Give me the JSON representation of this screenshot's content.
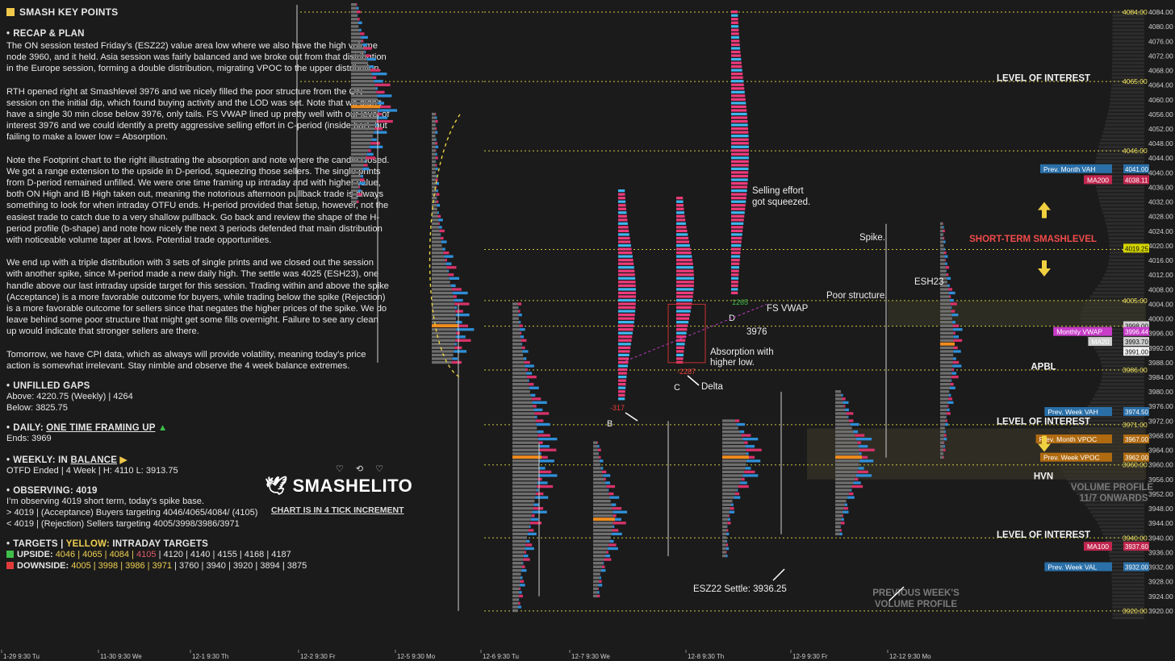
{
  "header": {
    "title": "SMASH KEY POINTS"
  },
  "recap": {
    "title": "RECAP & PLAN",
    "paragraphs": [
      "The ON session tested Friday’s (ESZ22) value area low where we also have the high volume node 3960, and it held. Asia session was fairly balanced and we broke out from that distribution in the Europe session, forming a double distribution, migrating VPOC to the upper distribution.",
      "RTH opened right at Smashlevel 3976 and we nicely filled the poor structure from the ON session on the initial dip, which found buying activity and the LOD was set. Note that we didn’t have a single 30 min close below 3976, only tails. FS VWAP lined up pretty well with our level of interest 3976 and we could identify a pretty aggressive selling effort in C-period (inside bar), but failing to make a lower low = Absorption.",
      "Note the Footprint chart to the right illustrating the absorption and note where the candle closed. We got a range extension to the upside in D-period, squeezing those sellers. The single prints from D-period remained unfilled. We were one time framing up intraday and with higher value, both ON High and IB High taken out, meaning the notorious afternoon pullback trade is always something to look for when intraday OTFU ends. H-period provided that setup, however, not the easiest trade to catch due to a very shallow pullback. Go back and review the shape of the H-period profile (b-shape) and note how nicely the next 3 periods defended that main distribution with noticeable volume taper at lows. Potential trade opportunities.",
      "We end up with a triple distribution with 3 sets of single prints and we closed out the session with another spike, since M-period made a new daily high. The settle was 4025 (ESH23), one handle above our last intraday upside target for this session. Trading within and above the spike (Acceptance) is a more favorable outcome for buyers, while trading below the spike (Rejection) is a more favorable outcome for sellers since that negates the higher prices of the spike. We do leave behind some poor structure that might get some fills overnight. Failure to see any clean up would indicate that stronger sellers are there.",
      "Tomorrow, we have CPI data, which as always will provide volatility, meaning today’s price action is somewhat irrelevant. Stay nimble and observe the 4 week balance extremes."
    ]
  },
  "gaps": {
    "title": "UNFILLED GAPS",
    "above": "Above: 4220.75 (Weekly) | 4264",
    "below": "Below: 3825.75"
  },
  "daily": {
    "title_prefix": "DAILY:",
    "title_main": "ONE TIME FRAMING UP",
    "arrow": "▲",
    "ends": "Ends: 3969"
  },
  "weekly": {
    "title_prefix": "WEEKLY:",
    "title_pre": "IN",
    "title_main": "BALANCE",
    "arrow": "▶",
    "detail": "OTFD Ended | 4 Week | H: 4110 L: 3913.75"
  },
  "observing": {
    "title": "OBSERVING: 4019",
    "lines": [
      "I’m observing 4019 short term, today’s spike base.",
      "> 4019 | (Acceptance) Buyers targeting 4046/4065/4084/ (4105)",
      "< 4019 | (Rejection) Sellers targeting 4005/3998/3986/3971"
    ]
  },
  "targets": {
    "title_a": "TARGETS",
    "title_sep": "|",
    "title_b": "YELLOW:",
    "title_c": "INTRADAY TARGETS",
    "upside_label": "UPSIDE:",
    "upside_yellow": "4046 | 4065 | 4084 |",
    "upside_red": "4105",
    "upside_rest": "| 4120 | 4140 | 4155 | 4168 | 4187",
    "downside_label": "DOWNSIDE:",
    "downside_yellow": "4005 | 3998 | 3986 | 3971",
    "downside_rest": "| 3760 | 3940 | 3920 | 3894 | 3875"
  },
  "brand": {
    "name": "SMASHELITO",
    "increment": "CHART IS IN 4 TICK INCREMENT",
    "socials": "♡ ⟲ ♡"
  },
  "colors": {
    "accent_yellow": "#f0c94a",
    "buy": "#3db7f0",
    "sell": "#ef3b7b",
    "level_line": "#c8c840",
    "bg": "#1b1b1b",
    "poc": "#f08c1e"
  },
  "chart_data": {
    "type": "market-profile",
    "ylim": [
      3916,
      4086
    ],
    "y_ticks": [
      4084,
      4080,
      4076,
      4072,
      4068,
      4064,
      4060,
      4056,
      4052,
      4048,
      4044,
      4040,
      4036,
      4032,
      4028,
      4024,
      4020,
      4016,
      4012,
      4008,
      4004,
      4000,
      3996,
      3992,
      3988,
      3984,
      3980,
      3976,
      3972,
      3968,
      3964,
      3960,
      3956,
      3952,
      3948,
      3944,
      3940,
      3936,
      3932,
      3928,
      3924,
      3920
    ],
    "y_tick_labels": [
      "4084.00",
      "4080.00",
      "4076.00",
      "4072.00",
      "4068.00",
      "4064.00",
      "4060.00",
      "4056.00",
      "4052.00",
      "4048.00",
      "4044.00",
      "4040.00",
      "4036.00",
      "4032.00",
      "4028.00",
      "4024.00",
      "4020.00",
      "4016.00",
      "4012.00",
      "4008.00",
      "4004.00",
      "4000.00",
      "3996.00",
      "3992.00",
      "3988.00",
      "3984.00",
      "3980.00",
      "3976.00",
      "3972.00",
      "3968.00",
      "3964.00",
      "3960.00",
      "3956.00",
      "3952.00",
      "3948.00",
      "3944.00",
      "3940.00",
      "3936.00",
      "3932.00",
      "3928.00",
      "3924.00",
      "3920.00"
    ],
    "x_ticks": [
      "1-29  9:30 Tu",
      "11-30  9:30 We",
      "12-1  9:30 Th",
      "12-2  9:30 Fr",
      "12-5  9:30 Mo",
      "12-6  9:30 Tu",
      "12-7  9:30 We",
      "12-8  9:30 Th",
      "12-9  9:30 Fr",
      "12-12  9:30 Mo"
    ],
    "levels": [
      {
        "price": 4084.0,
        "label": "4084.00"
      },
      {
        "price": 4065.0,
        "label": "4065.00"
      },
      {
        "price": 4046.0,
        "label": "4046.00"
      },
      {
        "price": 4019.0,
        "label": "4019.00"
      },
      {
        "price": 4005.0,
        "label": "4005.00"
      },
      {
        "price": 3998.0,
        "label": "3998.00"
      },
      {
        "price": 3986.0,
        "label": "3986.00"
      },
      {
        "price": 3971.0,
        "label": "3971.00"
      },
      {
        "price": 3960.0,
        "label": "3960.00"
      },
      {
        "price": 3940.0,
        "label": "3940.00"
      },
      {
        "price": 3920.0,
        "label": "3920.00"
      }
    ],
    "price_tags": [
      {
        "price": 4041.0,
        "text": "Prev. Month VAH",
        "value": "4041.00",
        "color": "#2a6fa8"
      },
      {
        "price": 4038.0,
        "text": "MA200",
        "value": "4038.11",
        "color": "#c0264e"
      },
      {
        "price": 4019.25,
        "text": "",
        "value": "4019.25",
        "color": "#d4d400"
      },
      {
        "price": 3998.0,
        "text": "",
        "value": "3998.00",
        "color": "#cfcfcf"
      },
      {
        "price": 3996.44,
        "text": "Monthly VWAP",
        "value": "3996.44",
        "color": "#c83cc8"
      },
      {
        "price": 3993.7,
        "text": "MA20",
        "value": "3993.70",
        "color": "#cfcfcf"
      },
      {
        "price": 3991.0,
        "text": "",
        "value": "3991.00",
        "color": "#f2f2f2"
      },
      {
        "price": 3974.5,
        "text": "Prev. Week VAH",
        "value": "3974.50",
        "color": "#2a6fa8"
      },
      {
        "price": 3967.0,
        "text": "Prev. Month VPOC",
        "value": "3967.00",
        "color": "#b06a10"
      },
      {
        "price": 3962.0,
        "text": "Prev. Week VPOC",
        "value": "3962.00",
        "color": "#b06a10"
      },
      {
        "price": 3937.6,
        "text": "MA100",
        "value": "3937.60",
        "color": "#c0264e"
      },
      {
        "price": 3932.0,
        "text": "Prev. Week VAL",
        "value": "3932.00",
        "color": "#2a6fa8"
      }
    ],
    "annotations": [
      {
        "text": "LEVEL OF INTEREST",
        "price": 4066
      },
      {
        "text": "SHORT-TERM SMASHLEVEL",
        "price": 4022
      },
      {
        "text": "APBL",
        "price": 3987
      },
      {
        "text": "LEVEL OF INTEREST",
        "price": 3972
      },
      {
        "text": "HVN",
        "price": 3957
      },
      {
        "text": "LEVEL OF INTEREST",
        "price": 3941
      },
      {
        "text": "VOLUME PROFILE",
        "price": 3954
      },
      {
        "text": "11/7 ONWARDS",
        "price": 3951
      },
      {
        "text": "PREVIOUS WEEK'S",
        "price": 3925
      },
      {
        "text": "VOLUME PROFILE",
        "price": 3922
      }
    ],
    "notes": [
      {
        "text": "Selling effort"
      },
      {
        "text": "got squeezed."
      },
      {
        "text": "Spike."
      },
      {
        "text": "ESH23"
      },
      {
        "text": "Poor structure."
      },
      {
        "text": "FS VWAP"
      },
      {
        "text": "3976"
      },
      {
        "text": "Absorption with"
      },
      {
        "text": "higher low."
      },
      {
        "text": "Delta"
      },
      {
        "text": "ESZ22 Settle: 3936.25"
      }
    ],
    "footprint_bars": [
      {
        "label": "B",
        "delta": "-317",
        "low": 3978,
        "high": 4035
      },
      {
        "label": "C",
        "delta": "-2287",
        "low": 3988,
        "high": 4033
      },
      {
        "label": "D",
        "delta": "1265",
        "low": 4007,
        "high": 4084
      }
    ],
    "profiles": [
      {
        "low": 4032,
        "high": 4086,
        "poc": 4058
      },
      {
        "low": 3988,
        "high": 4056,
        "poc": 3998
      },
      {
        "low": 3920,
        "high": 4004,
        "poc": 3962
      },
      {
        "low": 3924,
        "high": 3966,
        "poc": 3945
      },
      {
        "low": 3935,
        "high": 3972,
        "poc": 3962
      },
      {
        "low": 3941,
        "high": 3980,
        "poc": 3962
      },
      {
        "low": 3962,
        "high": 4026,
        "poc": 3993
      }
    ]
  }
}
